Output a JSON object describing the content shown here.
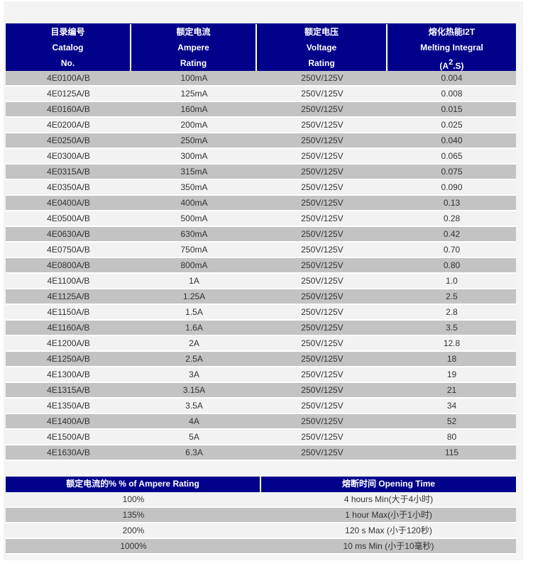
{
  "colors": {
    "header_bg": "#00008b",
    "header_text": "#ffffff",
    "row_grey": "#c3c3c3",
    "row_light": "#f2f2f2",
    "panel_bg": "#f3f4f3",
    "body_text": "#333333"
  },
  "table1": {
    "headers": [
      {
        "lines": [
          "目录编号",
          "Catalog",
          "No."
        ]
      },
      {
        "lines": [
          "额定电流",
          "Ampere",
          "Rating"
        ]
      },
      {
        "lines": [
          "额定电压",
          "Voltage",
          "Rating"
        ]
      },
      {
        "lines": [
          "熔化热能I2T",
          "Melting Integral"
        ],
        "sup_line": {
          "pre": "(A",
          "sup": "2",
          "post": ".S)"
        }
      }
    ],
    "rows": [
      [
        "4E0100A/B",
        "100mA",
        "250V/125V",
        "0.004"
      ],
      [
        "4E0125A/B",
        "125mA",
        "250V/125V",
        "0.008"
      ],
      [
        "4E0160A/B",
        "160mA",
        "250V/125V",
        "0.015"
      ],
      [
        "4E0200A/B",
        "200mA",
        "250V/125V",
        "0.025"
      ],
      [
        "4E0250A/B",
        "250mA",
        "250V/125V",
        "0.040"
      ],
      [
        "4E0300A/B",
        "300mA",
        "250V/125V",
        "0.065"
      ],
      [
        "4E0315A/B",
        "315mA",
        "250V/125V",
        "0.075"
      ],
      [
        "4E0350A/B",
        "350mA",
        "250V/125V",
        "0.090"
      ],
      [
        "4E0400A/B",
        "400mA",
        "250V/125V",
        "0.13"
      ],
      [
        "4E0500A/B",
        "500mA",
        "250V/125V",
        "0.28"
      ],
      [
        "4E0630A/B",
        "630mA",
        "250V/125V",
        "0.42"
      ],
      [
        "4E0750A/B",
        "750mA",
        "250V/125V",
        "0.70"
      ],
      [
        "4E0800A/B",
        "800mA",
        "250V/125V",
        "0.80"
      ],
      [
        "4E1100A/B",
        "1A",
        "250V/125V",
        "1.0"
      ],
      [
        "4E1125A/B",
        "1.25A",
        "250V/125V",
        "2.5"
      ],
      [
        "4E1150A/B",
        "1.5A",
        "250V/125V",
        "2.8"
      ],
      [
        "4E1160A/B",
        "1.6A",
        "250V/125V",
        "3.5"
      ],
      [
        "4E1200A/B",
        "2A",
        "250V/125V",
        "12.8"
      ],
      [
        "4E1250A/B",
        "2.5A",
        "250V/125V",
        "18"
      ],
      [
        "4E1300A/B",
        "3A",
        "250V/125V",
        "19"
      ],
      [
        "4E1315A/B",
        "3.15A",
        "250V/125V",
        "21"
      ],
      [
        "4E1350A/B",
        "3.5A",
        "250V/125V",
        "34"
      ],
      [
        "4E1400A/B",
        "4A",
        "250V/125V",
        "52"
      ],
      [
        "4E1500A/B",
        "5A",
        "250V/125V",
        "80"
      ],
      [
        "4E1630A/B",
        "6.3A",
        "250V/125V",
        "115"
      ]
    ]
  },
  "table2": {
    "headers": [
      {
        "label": "额定电流的% % of Ampere Rating"
      },
      {
        "label": "熔断时间 Opening Time"
      }
    ],
    "rows": [
      [
        "100%",
        "4 hours Min(大于4小时)"
      ],
      [
        "135%",
        "1 hour Max(小于1小时)"
      ],
      [
        "200%",
        "120 s Max (小于120秒)"
      ],
      [
        "1000%",
        "10 ms Min (小于10毫秒)"
      ]
    ]
  }
}
